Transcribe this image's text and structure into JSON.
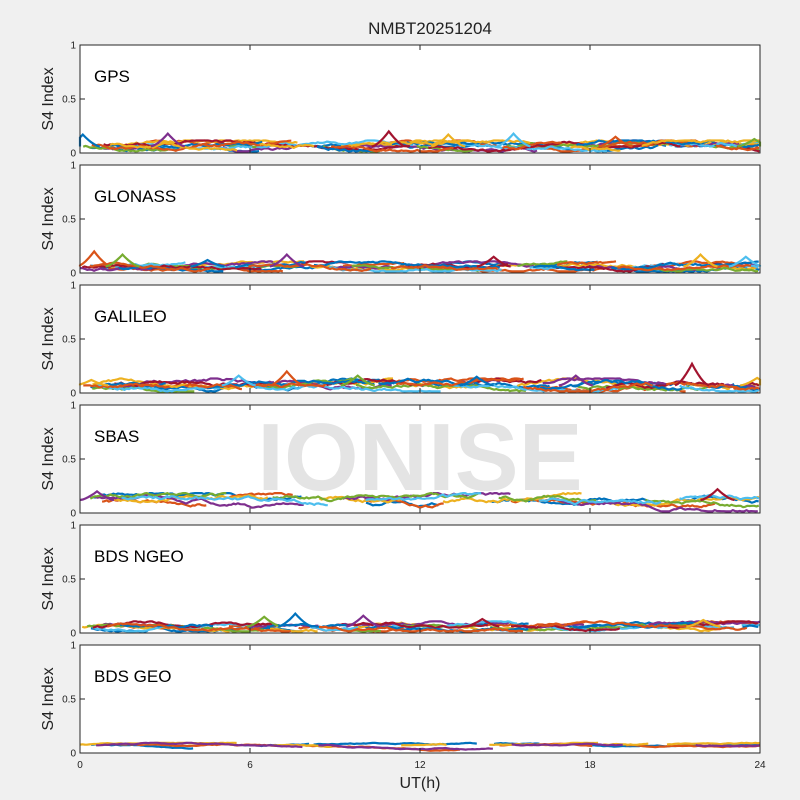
{
  "chart_data": {
    "type": "line",
    "title": "NMBT20251204",
    "xlabel": "UT(h)",
    "ylabel": "S4 Index",
    "xlim": [
      0,
      24
    ],
    "ylim": [
      0,
      1
    ],
    "x_ticks": [
      0,
      6,
      12,
      18,
      24
    ],
    "x_tick_labels": [
      "0",
      "6",
      "12",
      "18",
      "24"
    ],
    "y_ticks": [
      0,
      0.5,
      1
    ],
    "y_tick_labels": [
      "0",
      "0.5",
      "1"
    ],
    "grid": false,
    "watermark": "IONISE",
    "colors": [
      "#0072bd",
      "#d95319",
      "#edb120",
      "#7e2f8e",
      "#77ac30",
      "#4dbeee",
      "#a2142f"
    ],
    "panels": [
      {
        "label": "GPS",
        "seed": 11,
        "base": 0.06,
        "amp": 0.035,
        "n": 10,
        "spikes": [
          [
            0.1,
            0.17
          ],
          [
            3.1,
            0.18
          ],
          [
            10.9,
            0.2
          ],
          [
            13.0,
            0.17
          ],
          [
            15.3,
            0.18
          ],
          [
            18.9,
            0.15
          ],
          [
            23.8,
            0.13
          ]
        ]
      },
      {
        "label": "GLONASS",
        "seed": 23,
        "base": 0.06,
        "amp": 0.03,
        "n": 9,
        "spikes": [
          [
            0.5,
            0.2
          ],
          [
            1.5,
            0.17
          ],
          [
            4.5,
            0.12
          ],
          [
            7.3,
            0.17
          ],
          [
            14.6,
            0.15
          ],
          [
            21.9,
            0.17
          ],
          [
            23.5,
            0.15
          ]
        ]
      },
      {
        "label": "GALILEO",
        "seed": 37,
        "base": 0.07,
        "amp": 0.04,
        "n": 9,
        "spikes": [
          [
            0.4,
            0.12
          ],
          [
            5.6,
            0.16
          ],
          [
            7.3,
            0.2
          ],
          [
            9.8,
            0.16
          ],
          [
            14.0,
            0.15
          ],
          [
            17.5,
            0.16
          ],
          [
            21.6,
            0.27
          ],
          [
            23.9,
            0.14
          ]
        ]
      },
      {
        "label": "SBAS",
        "seed": 41,
        "base": 0.12,
        "amp": 0.04,
        "n": 6,
        "spikes": [
          [
            0.6,
            0.2
          ],
          [
            22.5,
            0.22
          ]
        ]
      },
      {
        "label": "BDS NGEO",
        "seed": 53,
        "base": 0.06,
        "amp": 0.03,
        "n": 9,
        "spikes": [
          [
            6.5,
            0.15
          ],
          [
            7.6,
            0.18
          ],
          [
            10.0,
            0.16
          ],
          [
            14.2,
            0.13
          ],
          [
            22.0,
            0.12
          ]
        ]
      },
      {
        "label": "BDS GEO",
        "seed": 67,
        "base": 0.075,
        "amp": 0.012,
        "n": 4,
        "spikes": []
      }
    ]
  }
}
